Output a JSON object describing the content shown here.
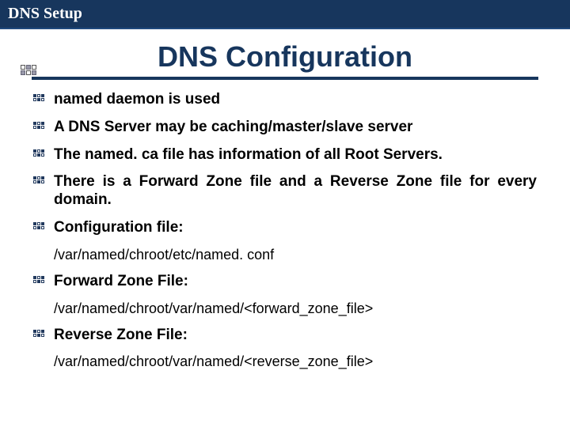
{
  "header": {
    "title": "DNS Setup"
  },
  "title": "DNS Configuration",
  "colors": {
    "header_bg": "#17365d",
    "header_text": "#ffffff",
    "title_color": "#17365d",
    "underline": "#17365d",
    "body_text": "#000000",
    "background": "#ffffff"
  },
  "fonts": {
    "title_size": 36,
    "body_size": 19,
    "path_size": 18,
    "header_size": 20
  },
  "items": [
    {
      "text": "named daemon is used",
      "justify": false
    },
    {
      "text": "A DNS Server may be caching/master/slave server",
      "justify": false
    },
    {
      "text": "The named. ca file has information of all Root Servers.",
      "justify": true
    },
    {
      "text": "There is a Forward Zone file and a Reverse Zone file for every domain.",
      "justify": true
    },
    {
      "text": "Configuration file:",
      "justify": false,
      "path": "/var/named/chroot/etc/named. conf"
    },
    {
      "text": "Forward Zone File:",
      "justify": false,
      "path": "/var/named/chroot/var/named/<forward_zone_file>"
    },
    {
      "text": "Reverse Zone File:",
      "justify": false,
      "path": "/var/named/chroot/var/named/<reverse_zone_file>"
    }
  ]
}
